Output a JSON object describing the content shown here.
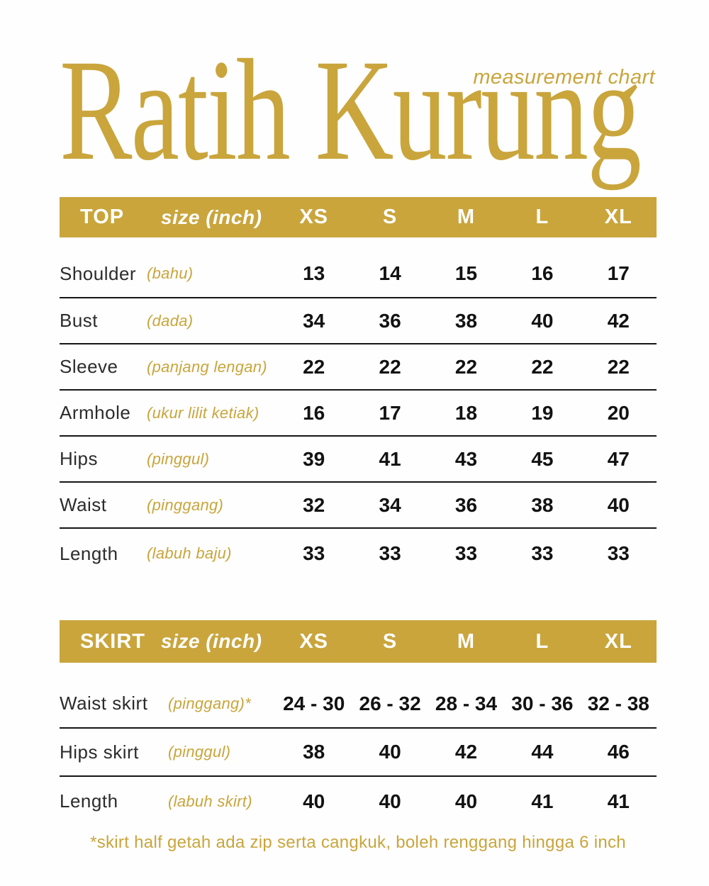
{
  "title": "Ratih Kurung",
  "subtitle": "measurement chart",
  "colors": {
    "gold": "#C9A53C",
    "header_text": "#FFFFFF",
    "label_text": "#2C2C2C",
    "value_text": "#121212"
  },
  "size_columns": [
    "XS",
    "S",
    "M",
    "L",
    "XL"
  ],
  "top_table": {
    "name": "TOP",
    "size_label": "size (inch)",
    "rows": [
      {
        "label": "Shoulder",
        "malay": "(bahu)",
        "values": [
          "13",
          "14",
          "15",
          "16",
          "17"
        ]
      },
      {
        "label": "Bust",
        "malay": "(dada)",
        "values": [
          "34",
          "36",
          "38",
          "40",
          "42"
        ]
      },
      {
        "label": "Sleeve",
        "malay": "(panjang lengan)",
        "values": [
          "22",
          "22",
          "22",
          "22",
          "22"
        ]
      },
      {
        "label": "Armhole",
        "malay": "(ukur lilit ketiak)",
        "values": [
          "16",
          "17",
          "18",
          "19",
          "20"
        ]
      },
      {
        "label": "Hips",
        "malay": "(pinggul)",
        "values": [
          "39",
          "41",
          "43",
          "45",
          "47"
        ]
      },
      {
        "label": "Waist",
        "malay": "(pinggang)",
        "values": [
          "32",
          "34",
          "36",
          "38",
          "40"
        ]
      },
      {
        "label": "Length",
        "malay": "(labuh baju)",
        "values": [
          "33",
          "33",
          "33",
          "33",
          "33"
        ]
      }
    ]
  },
  "skirt_table": {
    "name": "SKIRT",
    "size_label": "size (inch)",
    "rows": [
      {
        "label": "Waist skirt",
        "malay": "(pinggang)*",
        "values": [
          "24 - 30",
          "26 - 32",
          "28 - 34",
          "30 - 36",
          "32 - 38"
        ]
      },
      {
        "label": "Hips skirt",
        "malay": "(pinggul)",
        "values": [
          "38",
          "40",
          "42",
          "44",
          "46"
        ]
      },
      {
        "label": "Length",
        "malay": "(labuh skirt)",
        "values": [
          "40",
          "40",
          "40",
          "41",
          "41"
        ]
      }
    ]
  },
  "footnote": "*skirt half getah ada zip serta cangkuk, boleh renggang hingga 6 inch"
}
